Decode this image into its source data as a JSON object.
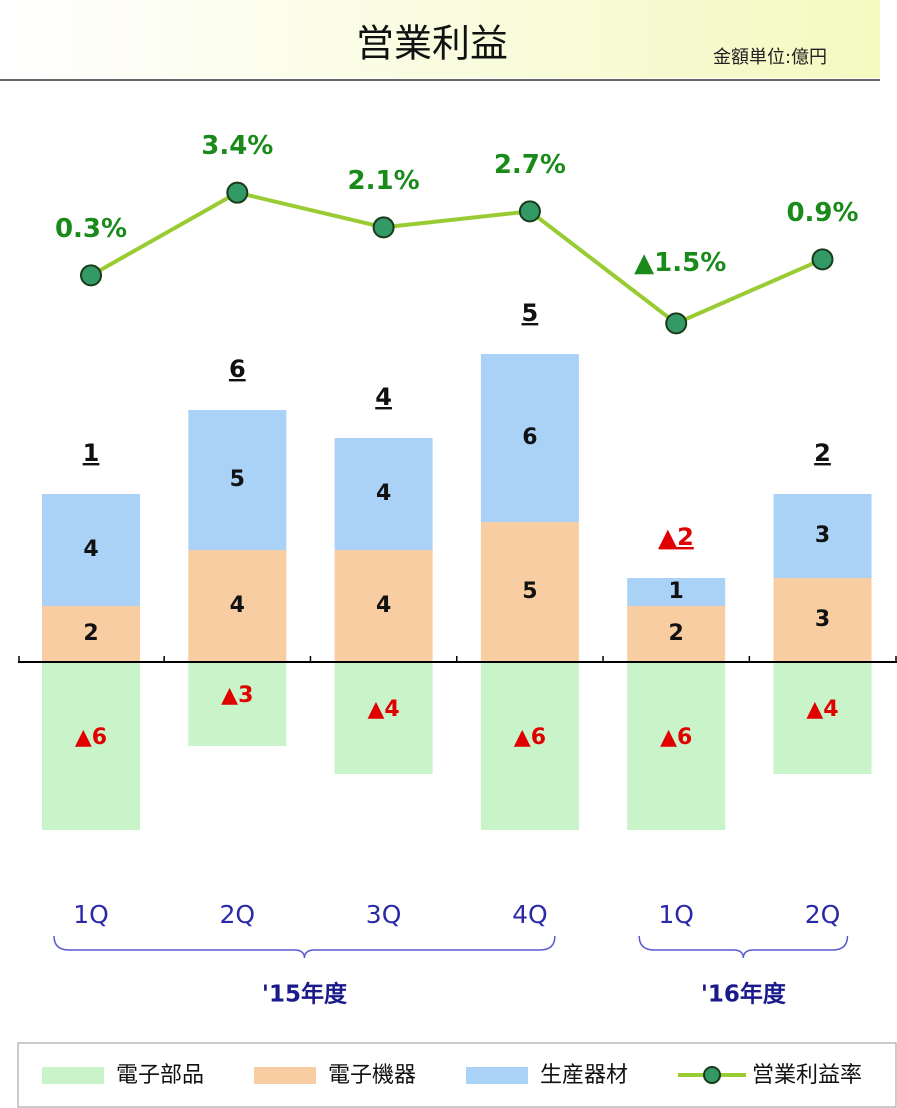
{
  "chart_data": {
    "type": "bar",
    "title": "営業利益",
    "unit": "金額単位:億円",
    "categories": [
      "1Q",
      "2Q",
      "3Q",
      "4Q",
      "1Q",
      "2Q"
    ],
    "groups": [
      {
        "label": "'15年度",
        "from": 0,
        "to": 3
      },
      {
        "label": "'16年度",
        "from": 4,
        "to": 5
      }
    ],
    "series": [
      {
        "name": "電子部品",
        "color": "#c9f3c9",
        "values": [
          -6,
          -3,
          -4,
          -6,
          -6,
          -4
        ],
        "value_labels": [
          "▲6",
          "▲3",
          "▲4",
          "▲6",
          "▲6",
          "▲4"
        ]
      },
      {
        "name": "電子機器",
        "color": "#f9cda2",
        "values": [
          2,
          4,
          4,
          5,
          2,
          3
        ]
      },
      {
        "name": "生産器材",
        "color": "#aad2f7",
        "values": [
          4,
          5,
          4,
          6,
          1,
          3
        ]
      },
      {
        "name": "営業利益率",
        "type": "line",
        "axis": "y2",
        "color": "#99cc33",
        "marker_color": "#339966",
        "values": [
          0.3,
          3.4,
          2.1,
          2.7,
          -1.5,
          0.9
        ],
        "value_labels": [
          "0.3%",
          "3.4%",
          "2.1%",
          "2.7%",
          "▲1.5%",
          "0.9%"
        ]
      }
    ],
    "totals": [
      1,
      6,
      4,
      5,
      -2,
      2
    ],
    "totals_labels": [
      "1",
      "6",
      "4",
      "5",
      "▲2",
      "2"
    ],
    "ylim": [
      -8,
      14
    ],
    "y2lim": [
      -2.5,
      5
    ]
  }
}
